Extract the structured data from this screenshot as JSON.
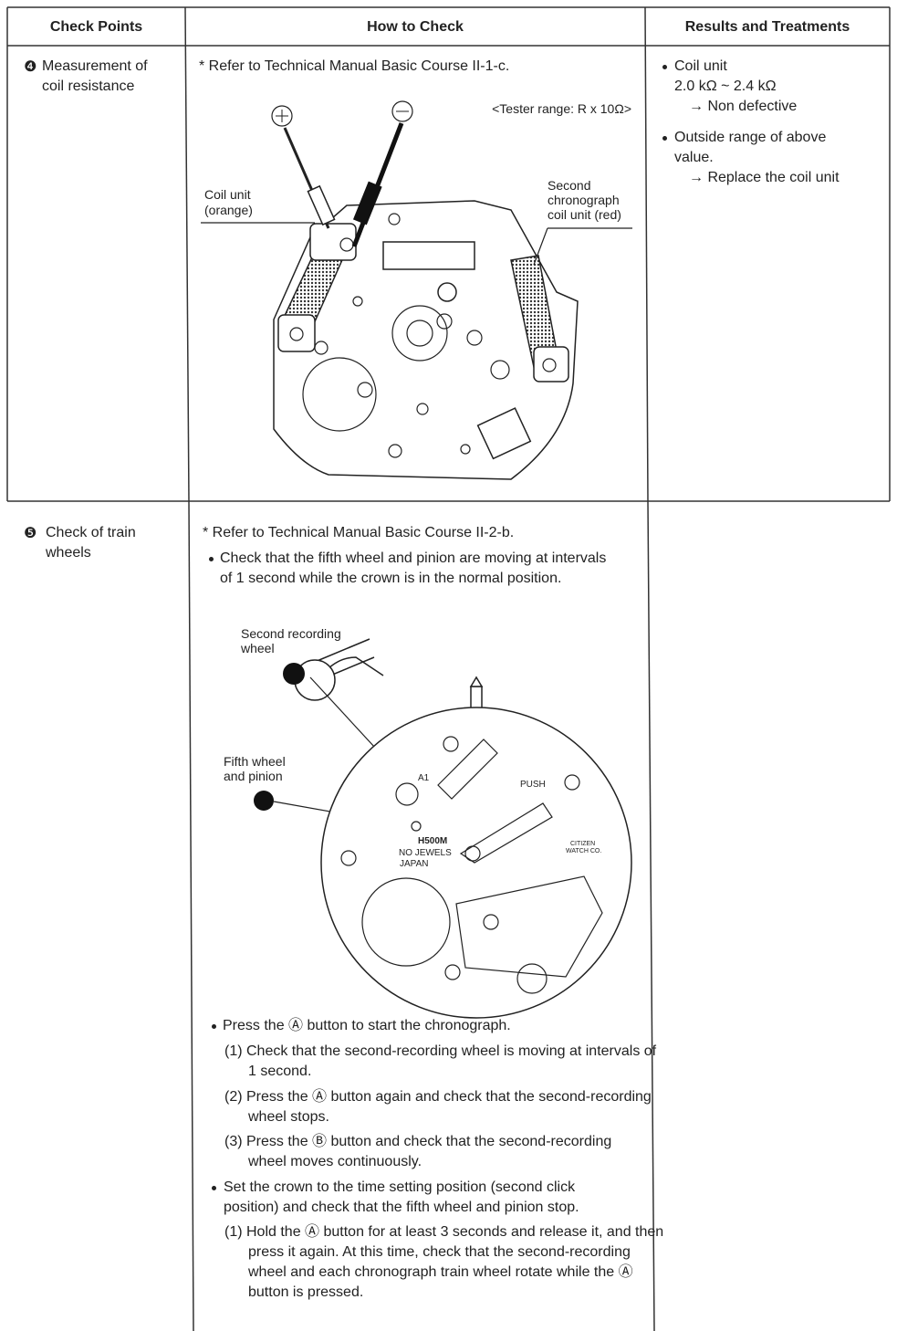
{
  "table": {
    "headers": [
      "Check Points",
      "How to Check",
      "Results and Treatments"
    ],
    "rows": [
      {
        "check_point": {
          "number": "❹",
          "text": "Measurement of coil resistance"
        },
        "how_to_check": {
          "note": "* Refer to Technical Manual Basic Course II-1-c.",
          "tester_range": "<Tester range: R x 10Ω>",
          "figure": {
            "coil_unit": [
              "Coil unit",
              "(orange)"
            ],
            "second_coil_unit": [
              "Second",
              "chronograph",
              "coil unit (red)"
            ]
          }
        },
        "results": [
          {
            "text": "Coil unit",
            "value": "2.0 kΩ ~ 2.4 kΩ",
            "treatment": "→ Non defective"
          },
          {
            "text": "Outside range of above value.",
            "treatment": "→ Replace the coil unit"
          }
        ]
      },
      {
        "check_point": {
          "number": "❺",
          "text": "Check of train wheels"
        },
        "how_to_check": {
          "note": "* Refer to Technical Manual Basic Course II-2-b.",
          "bullet": "Check that the fifth wheel and pinion are moving at intervals of 1 second while the crown is in the normal position.",
          "figure": {
            "second_recording_wheel": [
              "Second recording",
              "wheel"
            ],
            "fifth_wheel": [
              "Fifth wheel",
              "and pinion"
            ],
            "marks": [
              "A1",
              "PUSH",
              "H500M",
              "NO JEWELS",
              "JAPAN",
              "CITIZEN",
              "WATCH CO."
            ]
          },
          "steps_a": {
            "text": "Press the Ⓐ button to start the chronograph.",
            "steps": [
              "(1) Check that the second-recording wheel is moving at intervals of 1 second.",
              "(2) Press the Ⓐ button again and check that the second-recording wheel stops.",
              "(3) Press the Ⓑ button and check that the second-recording wheel moves continuously."
            ]
          },
          "steps_b": {
            "text": "Set the crown to the time setting position (second click position) and check that the fifth wheel and pinion stop.",
            "steps": [
              "(1) Hold the Ⓐ button for at least 3 seconds and release it, and then press it again. At this time, check that the second-recording wheel and each chronograph train wheel rotate while the Ⓐ button is pressed."
            ]
          }
        },
        "results": []
      }
    ]
  }
}
